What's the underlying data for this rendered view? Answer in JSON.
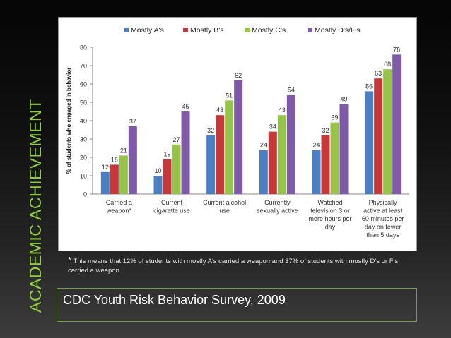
{
  "side_title": "ACADEMIC ACHIEVEMENT",
  "footnote": {
    "marker": "*",
    "text": "This means that 12% of students with mostly A's carried a weapon and 37% of students with mostly D's or F's carried a weapon"
  },
  "source": "CDC Youth Risk Behavior Survey, 2009",
  "colors": {
    "background": "#000000",
    "title_green": "#8fcf3c",
    "series_a": "#4a7fc1",
    "series_b": "#c7383a",
    "series_c": "#96c44a",
    "series_d": "#7f5aa8"
  },
  "chart_data": {
    "type": "bar",
    "title": "",
    "xlabel": "",
    "ylabel": "% of students who engaged in behavior",
    "ylim": [
      0,
      80
    ],
    "yticks": [
      0,
      10,
      20,
      30,
      40,
      50,
      60,
      70,
      80
    ],
    "legend_position": "top",
    "categories": [
      [
        "Carried a",
        "weapon*"
      ],
      [
        "Current",
        "cigarette use"
      ],
      [
        "Current alcohol",
        "use"
      ],
      [
        "Currently",
        "sexually active"
      ],
      [
        "Watched",
        "television 3 or",
        "more hours per",
        "day"
      ],
      [
        "Physically",
        "active at least",
        "60 minutes per",
        "day on fewer",
        "than 5 days"
      ]
    ],
    "series": [
      {
        "name": "Mostly A's",
        "color": "#4a7fc1",
        "values": [
          12,
          10,
          32,
          24,
          24,
          56
        ]
      },
      {
        "name": "Mostly B's",
        "color": "#c7383a",
        "values": [
          16,
          19,
          43,
          34,
          32,
          63
        ]
      },
      {
        "name": "Mostly C's",
        "color": "#96c44a",
        "values": [
          21,
          27,
          51,
          43,
          39,
          68
        ]
      },
      {
        "name": "Mostly D's/F's",
        "color": "#7f5aa8",
        "values": [
          37,
          45,
          62,
          54,
          49,
          76
        ]
      }
    ]
  }
}
